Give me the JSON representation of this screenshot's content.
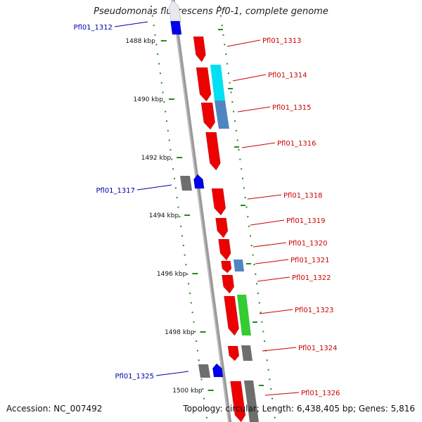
{
  "title": "Pseudomonas fluorescens Pf0-1, complete genome",
  "footer": {
    "accession": "Accession: NC_007492",
    "stats": "Topology: circular; Length: 6,438,405 bp; Genes: 5,816"
  },
  "colors": {
    "backbone": "#8a8a8a",
    "forward_label": "#cc0000",
    "reverse_label": "#0000aa",
    "red_cds": "#ee0000",
    "blue_gene": "#0000ee",
    "cyan_gene": "#00e0f0",
    "steelblue_gene": "#4f86c2",
    "green_gene": "#33cc33",
    "gray_gene": "#6e6e6e",
    "tick": "#228b22"
  },
  "scale": {
    "ticks": [
      {
        "label": "1488 kbp",
        "kbp": 1488
      },
      {
        "label": "1490 kbp",
        "kbp": 1490
      },
      {
        "label": "1492 kbp",
        "kbp": 1492
      },
      {
        "label": "1494 kbp",
        "kbp": 1494
      },
      {
        "label": "1496 kbp",
        "kbp": 1496
      },
      {
        "label": "1498 kbp",
        "kbp": 1498
      },
      {
        "label": "1500 kbp",
        "kbp": 1500
      }
    ]
  },
  "labels": {
    "right": [
      {
        "text": "Pfl01_1313"
      },
      {
        "text": "Pfl01_1314"
      },
      {
        "text": "Pfl01_1315"
      },
      {
        "text": "Pfl01_1316"
      },
      {
        "text": "Pfl01_1318"
      },
      {
        "text": "Pfl01_1319"
      },
      {
        "text": "Pfl01_1320"
      },
      {
        "text": "Pfl01_1321"
      },
      {
        "text": "Pfl01_1322"
      },
      {
        "text": "Pfl01_1323"
      },
      {
        "text": "Pfl01_1324"
      },
      {
        "text": "Pfl01_1326"
      }
    ],
    "left": [
      {
        "text": "Pfl01_1312"
      },
      {
        "text": "Pfl01_1317"
      },
      {
        "text": "Pfl01_1325"
      }
    ]
  }
}
